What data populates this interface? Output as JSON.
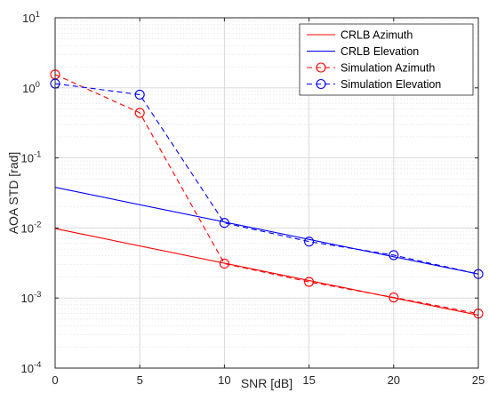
{
  "chart_data": {
    "type": "line",
    "xlabel": "SNR [dB]",
    "ylabel": "AOA STD [rad]",
    "xlim": [
      0,
      25
    ],
    "ylim_log10": [
      -4,
      1
    ],
    "y_scale": "log",
    "grid": true,
    "legend_position": "top-right",
    "x_ticks": [
      "0",
      "5",
      "10",
      "15",
      "20",
      "25"
    ],
    "y_ticks": [
      {
        "base": "10",
        "exp": "-4"
      },
      {
        "base": "10",
        "exp": "-3"
      },
      {
        "base": "10",
        "exp": "-2"
      },
      {
        "base": "10",
        "exp": "-1"
      },
      {
        "base": "10",
        "exp": "0"
      },
      {
        "base": "10",
        "exp": "1"
      }
    ],
    "series": [
      {
        "name": "CRLB Azimuth",
        "color": "#ff0000",
        "style": "solid",
        "marker": "none",
        "x": [
          0,
          25
        ],
        "y": [
          0.0098,
          0.00057
        ]
      },
      {
        "name": "CRLB Elevation",
        "color": "#0000ff",
        "style": "solid",
        "marker": "none",
        "x": [
          0,
          25
        ],
        "y": [
          0.038,
          0.0022
        ]
      },
      {
        "name": "Simulation Azimuth",
        "color": "#ff0000",
        "style": "dashed",
        "marker": "circle",
        "x": [
          0,
          5,
          10,
          15,
          20,
          25
        ],
        "y": [
          1.55,
          0.44,
          0.0031,
          0.0017,
          0.00102,
          0.0006
        ]
      },
      {
        "name": "Simulation Elevation",
        "color": "#0000ff",
        "style": "dashed",
        "marker": "circle",
        "x": [
          0,
          5,
          10,
          15,
          20,
          25
        ],
        "y": [
          1.15,
          0.8,
          0.0118,
          0.0064,
          0.0041,
          0.0022
        ]
      }
    ]
  }
}
